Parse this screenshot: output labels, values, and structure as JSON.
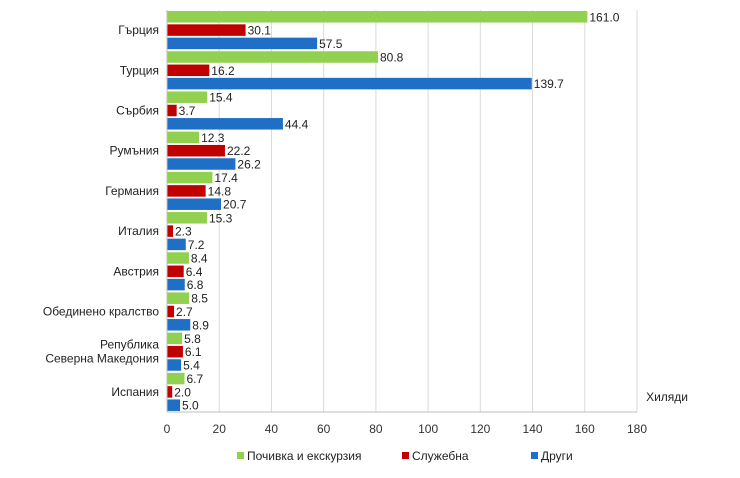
{
  "chart_data": {
    "type": "bar",
    "orientation": "horizontal",
    "title": "",
    "xlabel": "Хиляди",
    "ylabel": "",
    "xlim": [
      0,
      180
    ],
    "x_ticks": [
      "0",
      "20",
      "40",
      "60",
      "80",
      "100",
      "120",
      "140",
      "160",
      "180"
    ],
    "grid": true,
    "legend_position": "bottom",
    "categories": [
      [
        "Гърция"
      ],
      [
        "Турция"
      ],
      [
        "Сърбия"
      ],
      [
        "Румъния"
      ],
      [
        "Германия"
      ],
      [
        "Италия"
      ],
      [
        "Австрия"
      ],
      [
        "Обединено кралство"
      ],
      [
        "Република",
        "Северна Македония"
      ],
      [
        "Испания"
      ]
    ],
    "series": [
      {
        "name": "Почивка и екскурзия",
        "color": "#92d050",
        "values": [
          161.0,
          80.8,
          15.4,
          12.3,
          17.4,
          15.3,
          8.4,
          8.5,
          5.8,
          6.7
        ],
        "labels": [
          "161.0",
          "80.8",
          "15.4",
          "12.3",
          "17.4",
          "15.3",
          "8.4",
          "8.5",
          "5.8",
          "6.7"
        ]
      },
      {
        "name": "Служебна",
        "color": "#c00000",
        "values": [
          30.1,
          16.2,
          3.7,
          22.2,
          14.8,
          2.3,
          6.4,
          2.7,
          6.1,
          2.0
        ],
        "labels": [
          "30.1",
          "16.2",
          "3.7",
          "22.2",
          "14.8",
          "2.3",
          "6.4",
          "2.7",
          "6.1",
          "2.0"
        ]
      },
      {
        "name": "Други",
        "color": "#1f6fc6",
        "values": [
          57.5,
          139.7,
          44.4,
          26.2,
          20.7,
          7.2,
          6.8,
          8.9,
          5.4,
          5.0
        ],
        "labels": [
          "57.5",
          "139.7",
          "44.4",
          "26.2",
          "20.7",
          "7.2",
          "6.8",
          "8.9",
          "5.4",
          "5.0"
        ]
      }
    ]
  }
}
